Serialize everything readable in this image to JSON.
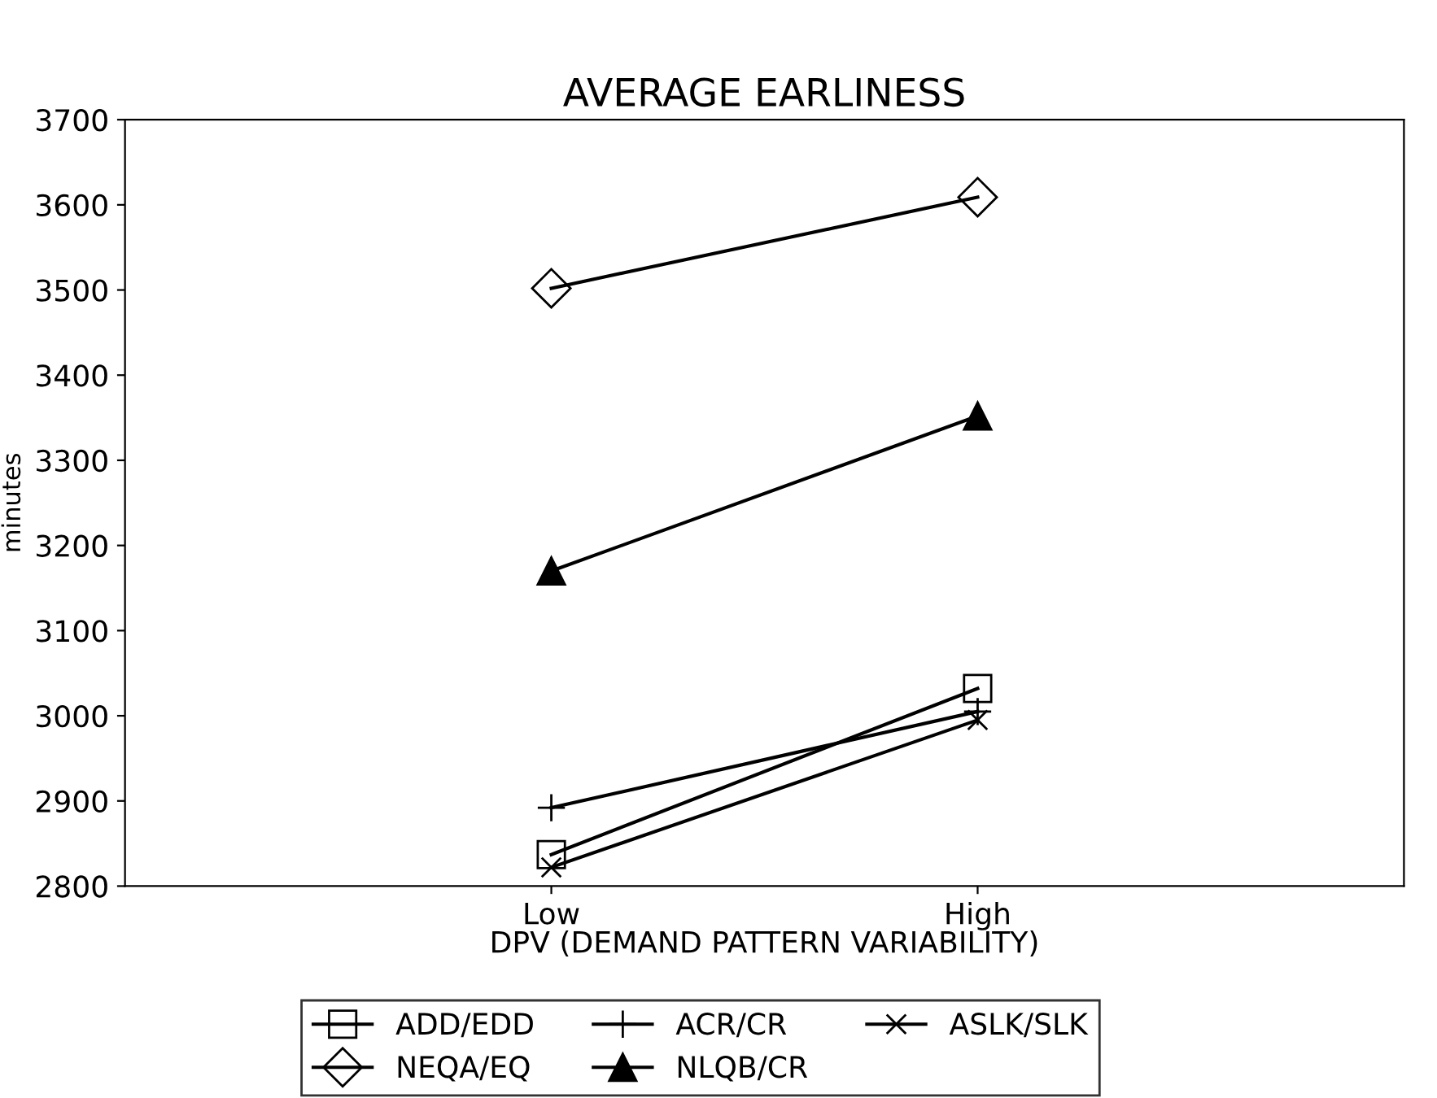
{
  "chart_data": {
    "type": "line",
    "title": "AVERAGE EARLINESS",
    "xlabel": "DPV (DEMAND PATTERN VARIABILITY)",
    "ylabel": "minutes",
    "categories": [
      "Low",
      "High"
    ],
    "series": [
      {
        "name": "ADD/EDD",
        "color": "#000000",
        "marker": "square",
        "values": [
          2837,
          3032
        ]
      },
      {
        "name": "ACR/CR",
        "color": "#000000",
        "marker": "cross",
        "values": [
          2892,
          3005
        ]
      },
      {
        "name": "ASLK/SLK",
        "color": "#000000",
        "marker": "star",
        "values": [
          2822,
          2995
        ]
      },
      {
        "name": "NEQA/EQ",
        "color": "#000000",
        "marker": "diamond",
        "values": [
          3502,
          3609
        ]
      },
      {
        "name": "NLQB/CR",
        "color": "#000000",
        "marker": "triangle",
        "values": [
          3170,
          3352
        ]
      }
    ],
    "ylim": [
      2800,
      3700
    ],
    "yticks": [
      2800,
      2900,
      3000,
      3100,
      3200,
      3300,
      3400,
      3500,
      3600,
      3700
    ],
    "grid": false,
    "legend": "bottom",
    "line_style": "solid"
  }
}
